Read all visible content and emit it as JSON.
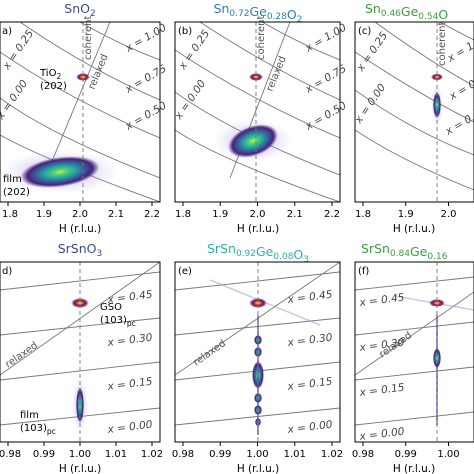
{
  "chart_data": [
    {
      "type": "heatmap",
      "panel": "a",
      "title_parts": [
        {
          "t": "SnO"
        },
        {
          "t": "2",
          "sub": true
        }
      ],
      "title_color": "#3b4a8f",
      "xlabel": "H (r.l.u.)",
      "xlim": [
        1.8,
        2.2
      ],
      "ticks": [
        "1.8",
        "1.9",
        "2.0",
        "2.1",
        "2.2"
      ],
      "tick_values": [
        1.8,
        1.9,
        2.0,
        2.1,
        2.2
      ],
      "x_lines": [
        "x = 0.00",
        "x = 0.25",
        "x = 0.50",
        "x = 0.75",
        "x = 1.00"
      ],
      "line_labels": [
        "coherent",
        "relaxed"
      ],
      "annotations": [
        {
          "parts": [
            {
              "t": "TiO"
            },
            {
              "t": "2",
              "sub": true
            }
          ]
        },
        {
          "parts": [
            {
              "t": "(202)"
            }
          ]
        },
        {
          "parts": [
            {
              "t": "film"
            }
          ]
        },
        {
          "parts": [
            {
              "t": "(202)"
            }
          ]
        }
      ]
    },
    {
      "type": "heatmap",
      "panel": "b",
      "title_parts": [
        {
          "t": "Sn"
        },
        {
          "t": "0.72",
          "sub": true
        },
        {
          "t": "Ge"
        },
        {
          "t": "0.28",
          "sub": true
        },
        {
          "t": "O"
        },
        {
          "t": "2",
          "sub": true
        }
      ],
      "title_color": "#2f7fb5",
      "xlabel": "H (r.l.u.)",
      "xlim": [
        1.8,
        2.2
      ],
      "ticks": [
        "1.8",
        "1.9",
        "2.0",
        "2.1",
        "2.2"
      ],
      "tick_values": [
        1.8,
        1.9,
        2.0,
        2.1,
        2.2
      ],
      "x_lines": [
        "x = 0.00",
        "x = 0.25",
        "x = 0.50",
        "x = 0.75",
        "x = 1.00"
      ],
      "line_labels": [
        "coherent",
        "relaxed"
      ],
      "annotations": []
    },
    {
      "type": "heatmap",
      "panel": "c",
      "title_parts": [
        {
          "t": "Sn"
        },
        {
          "t": "0.46",
          "sub": true
        },
        {
          "t": "Ge"
        },
        {
          "t": "0.54",
          "sub": true
        },
        {
          "t": "O"
        }
      ],
      "title_color": "#3c9e3c",
      "xlabel": "H (r.l.u.)",
      "xlim": [
        1.8,
        2.2
      ],
      "ticks": [
        "1.8",
        "1.9",
        "2.0"
      ],
      "tick_values": [
        1.8,
        1.9,
        2.0
      ],
      "x_lines": [
        "x = 0.00",
        "x = 0.25",
        "x = 0.50",
        "x = 0.75",
        "x = 1.00"
      ],
      "line_labels": [
        "coherent"
      ],
      "annotations": []
    },
    {
      "type": "heatmap",
      "panel": "d",
      "title_parts": [
        {
          "t": "SrSnO"
        },
        {
          "t": "3",
          "sub": true
        }
      ],
      "title_color": "#3b4a8f",
      "xlabel": "H (r.l.u.)",
      "xlim": [
        0.98,
        1.02
      ],
      "ticks": [
        "0.98",
        "0.99",
        "1.00",
        "1.01",
        "1.02"
      ],
      "tick_values": [
        0.98,
        0.99,
        1.0,
        1.01,
        1.02
      ],
      "x_lines": [
        "x = 0.00",
        "x = 0.15",
        "x = 0.30",
        "x = 0.45"
      ],
      "line_labels": [
        "relaxed"
      ],
      "annotations": [
        {
          "parts": [
            {
              "t": "GSO"
            }
          ]
        },
        {
          "parts": [
            {
              "t": "(103)"
            },
            {
              "t": "pc",
              "sub": true
            }
          ]
        },
        {
          "parts": [
            {
              "t": "film"
            }
          ]
        },
        {
          "parts": [
            {
              "t": "(103)"
            },
            {
              "t": "pc",
              "sub": true
            }
          ]
        }
      ]
    },
    {
      "type": "heatmap",
      "panel": "e",
      "title_parts": [
        {
          "t": "SrSn"
        },
        {
          "t": "0.92",
          "sub": true
        },
        {
          "t": "Ge"
        },
        {
          "t": "0.08",
          "sub": true
        },
        {
          "t": "O"
        },
        {
          "t": "3",
          "sub": true
        }
      ],
      "title_color": "#2bb3a0",
      "xlabel": "H (r.l.u.)",
      "xlim": [
        0.98,
        1.02
      ],
      "ticks": [
        "0.98",
        "0.99",
        "1.00",
        "1.01",
        "1.02"
      ],
      "tick_values": [
        0.98,
        0.99,
        1.0,
        1.01,
        1.02
      ],
      "x_lines": [
        "x = 0.00",
        "x = 0.15",
        "x = 0.30",
        "x = 0.45"
      ],
      "line_labels": [
        "relaxed"
      ],
      "annotations": []
    },
    {
      "type": "heatmap",
      "panel": "f",
      "title_parts": [
        {
          "t": "SrSn"
        },
        {
          "t": "0.84",
          "sub": true
        },
        {
          "t": "Ge"
        },
        {
          "t": "0.16",
          "sub": true
        }
      ],
      "title_color": "#3c9e3c",
      "xlabel": "H (r.l.u.)",
      "xlim": [
        0.98,
        1.02
      ],
      "ticks": [
        "0.98",
        "0.99",
        "1.00"
      ],
      "tick_values": [
        0.98,
        0.99,
        1.0
      ],
      "x_lines": [
        "x = 0.00",
        "x = 0.15",
        "x = 0.30",
        "x = 0.45"
      ],
      "line_labels": [
        "relaxed"
      ],
      "annotations": []
    }
  ]
}
